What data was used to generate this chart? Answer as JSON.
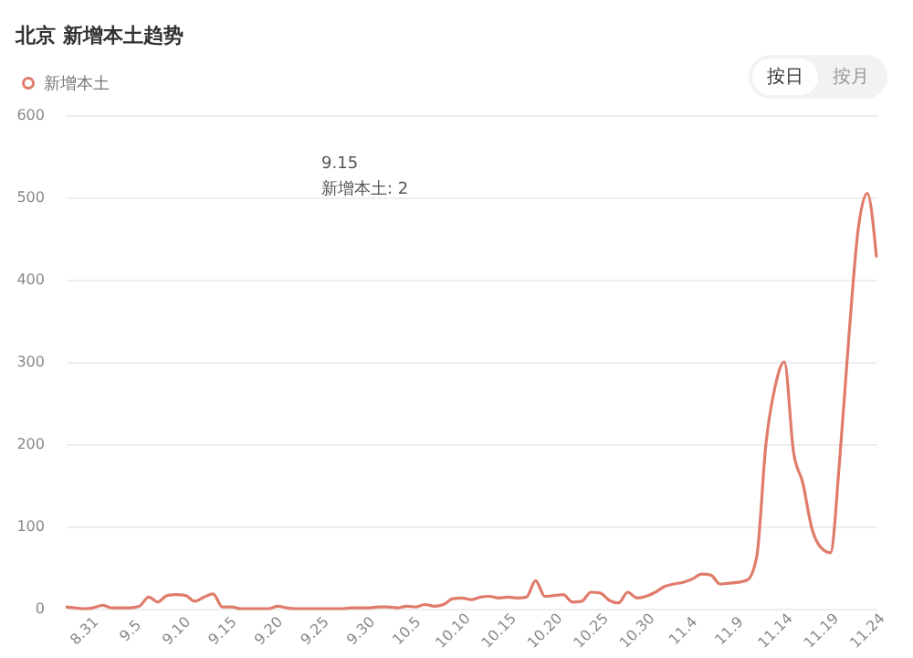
{
  "chart_data": {
    "type": "line",
    "title": "北京 新增本土趋势",
    "categories": [
      null,
      null,
      "8.31",
      null,
      null,
      null,
      null,
      "9.5",
      null,
      null,
      null,
      null,
      "9.10",
      null,
      null,
      null,
      null,
      "9.15",
      null,
      null,
      null,
      null,
      "9.20",
      null,
      null,
      null,
      null,
      "9.25",
      null,
      null,
      null,
      null,
      "9.30",
      null,
      null,
      null,
      null,
      "10.5",
      null,
      null,
      null,
      null,
      "10.10",
      null,
      null,
      null,
      null,
      "10.15",
      null,
      null,
      null,
      null,
      "10.20",
      null,
      null,
      null,
      null,
      "10.25",
      null,
      null,
      null,
      null,
      "10.30",
      null,
      null,
      null,
      null,
      "11.4",
      null,
      null,
      null,
      null,
      "11.9",
      null,
      null,
      null,
      null,
      "11.14",
      null,
      null,
      null,
      null,
      "11.19",
      null,
      null,
      null,
      null,
      "11.24",
      null
    ],
    "series": [
      {
        "name": "新增本土",
        "color": "#e07b6a",
        "values": [
          2,
          1,
          0,
          1,
          4,
          1,
          1,
          1,
          3,
          14,
          8,
          16,
          17,
          16,
          9,
          14,
          18,
          2,
          2,
          0,
          0,
          0,
          0,
          3,
          1,
          0,
          0,
          0,
          0,
          0,
          0,
          1,
          1,
          1,
          2,
          2,
          1,
          3,
          2,
          5,
          3,
          5,
          12,
          13,
          11,
          14,
          15,
          13,
          14,
          13,
          14,
          34,
          15,
          16,
          17,
          8,
          9,
          20,
          19,
          10,
          7,
          20,
          13,
          15,
          20,
          27,
          30,
          32,
          36,
          42,
          41,
          30,
          31,
          32,
          35,
          63,
          200,
          270,
          300,
          190,
          153,
          97,
          74,
          68,
          180,
          330,
          460,
          505,
          427
        ]
      }
    ],
    "ylim": [
      0,
      600
    ],
    "yticks": [
      0,
      100,
      200,
      300,
      400,
      500,
      600
    ],
    "grid": "y",
    "legend": "top left",
    "marker": "none",
    "line_style": "solid",
    "annotations": [
      "9.15\n新增本土: 2",
      "按日",
      "按月"
    ]
  }
}
